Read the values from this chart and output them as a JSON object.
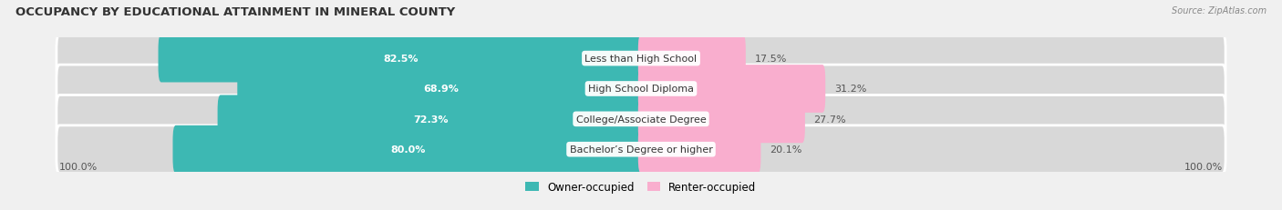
{
  "title": "OCCUPANCY BY EDUCATIONAL ATTAINMENT IN MINERAL COUNTY",
  "source": "Source: ZipAtlas.com",
  "categories": [
    "Less than High School",
    "High School Diploma",
    "College/Associate Degree",
    "Bachelor’s Degree or higher"
  ],
  "owner_values": [
    82.5,
    68.9,
    72.3,
    80.0
  ],
  "renter_values": [
    17.5,
    31.2,
    27.7,
    20.1
  ],
  "owner_color": "#3db8b3",
  "renter_color": "#f780ae",
  "renter_color_light": "#f9aece",
  "background_color": "#f0f0f0",
  "bar_bg_color": "#d8d8d8",
  "title_fontsize": 9.5,
  "bar_height": 0.58,
  "x_left_label": "100.0%",
  "x_right_label": "100.0%",
  "legend_owner": "Owner-occupied",
  "legend_renter": "Renter-occupied"
}
